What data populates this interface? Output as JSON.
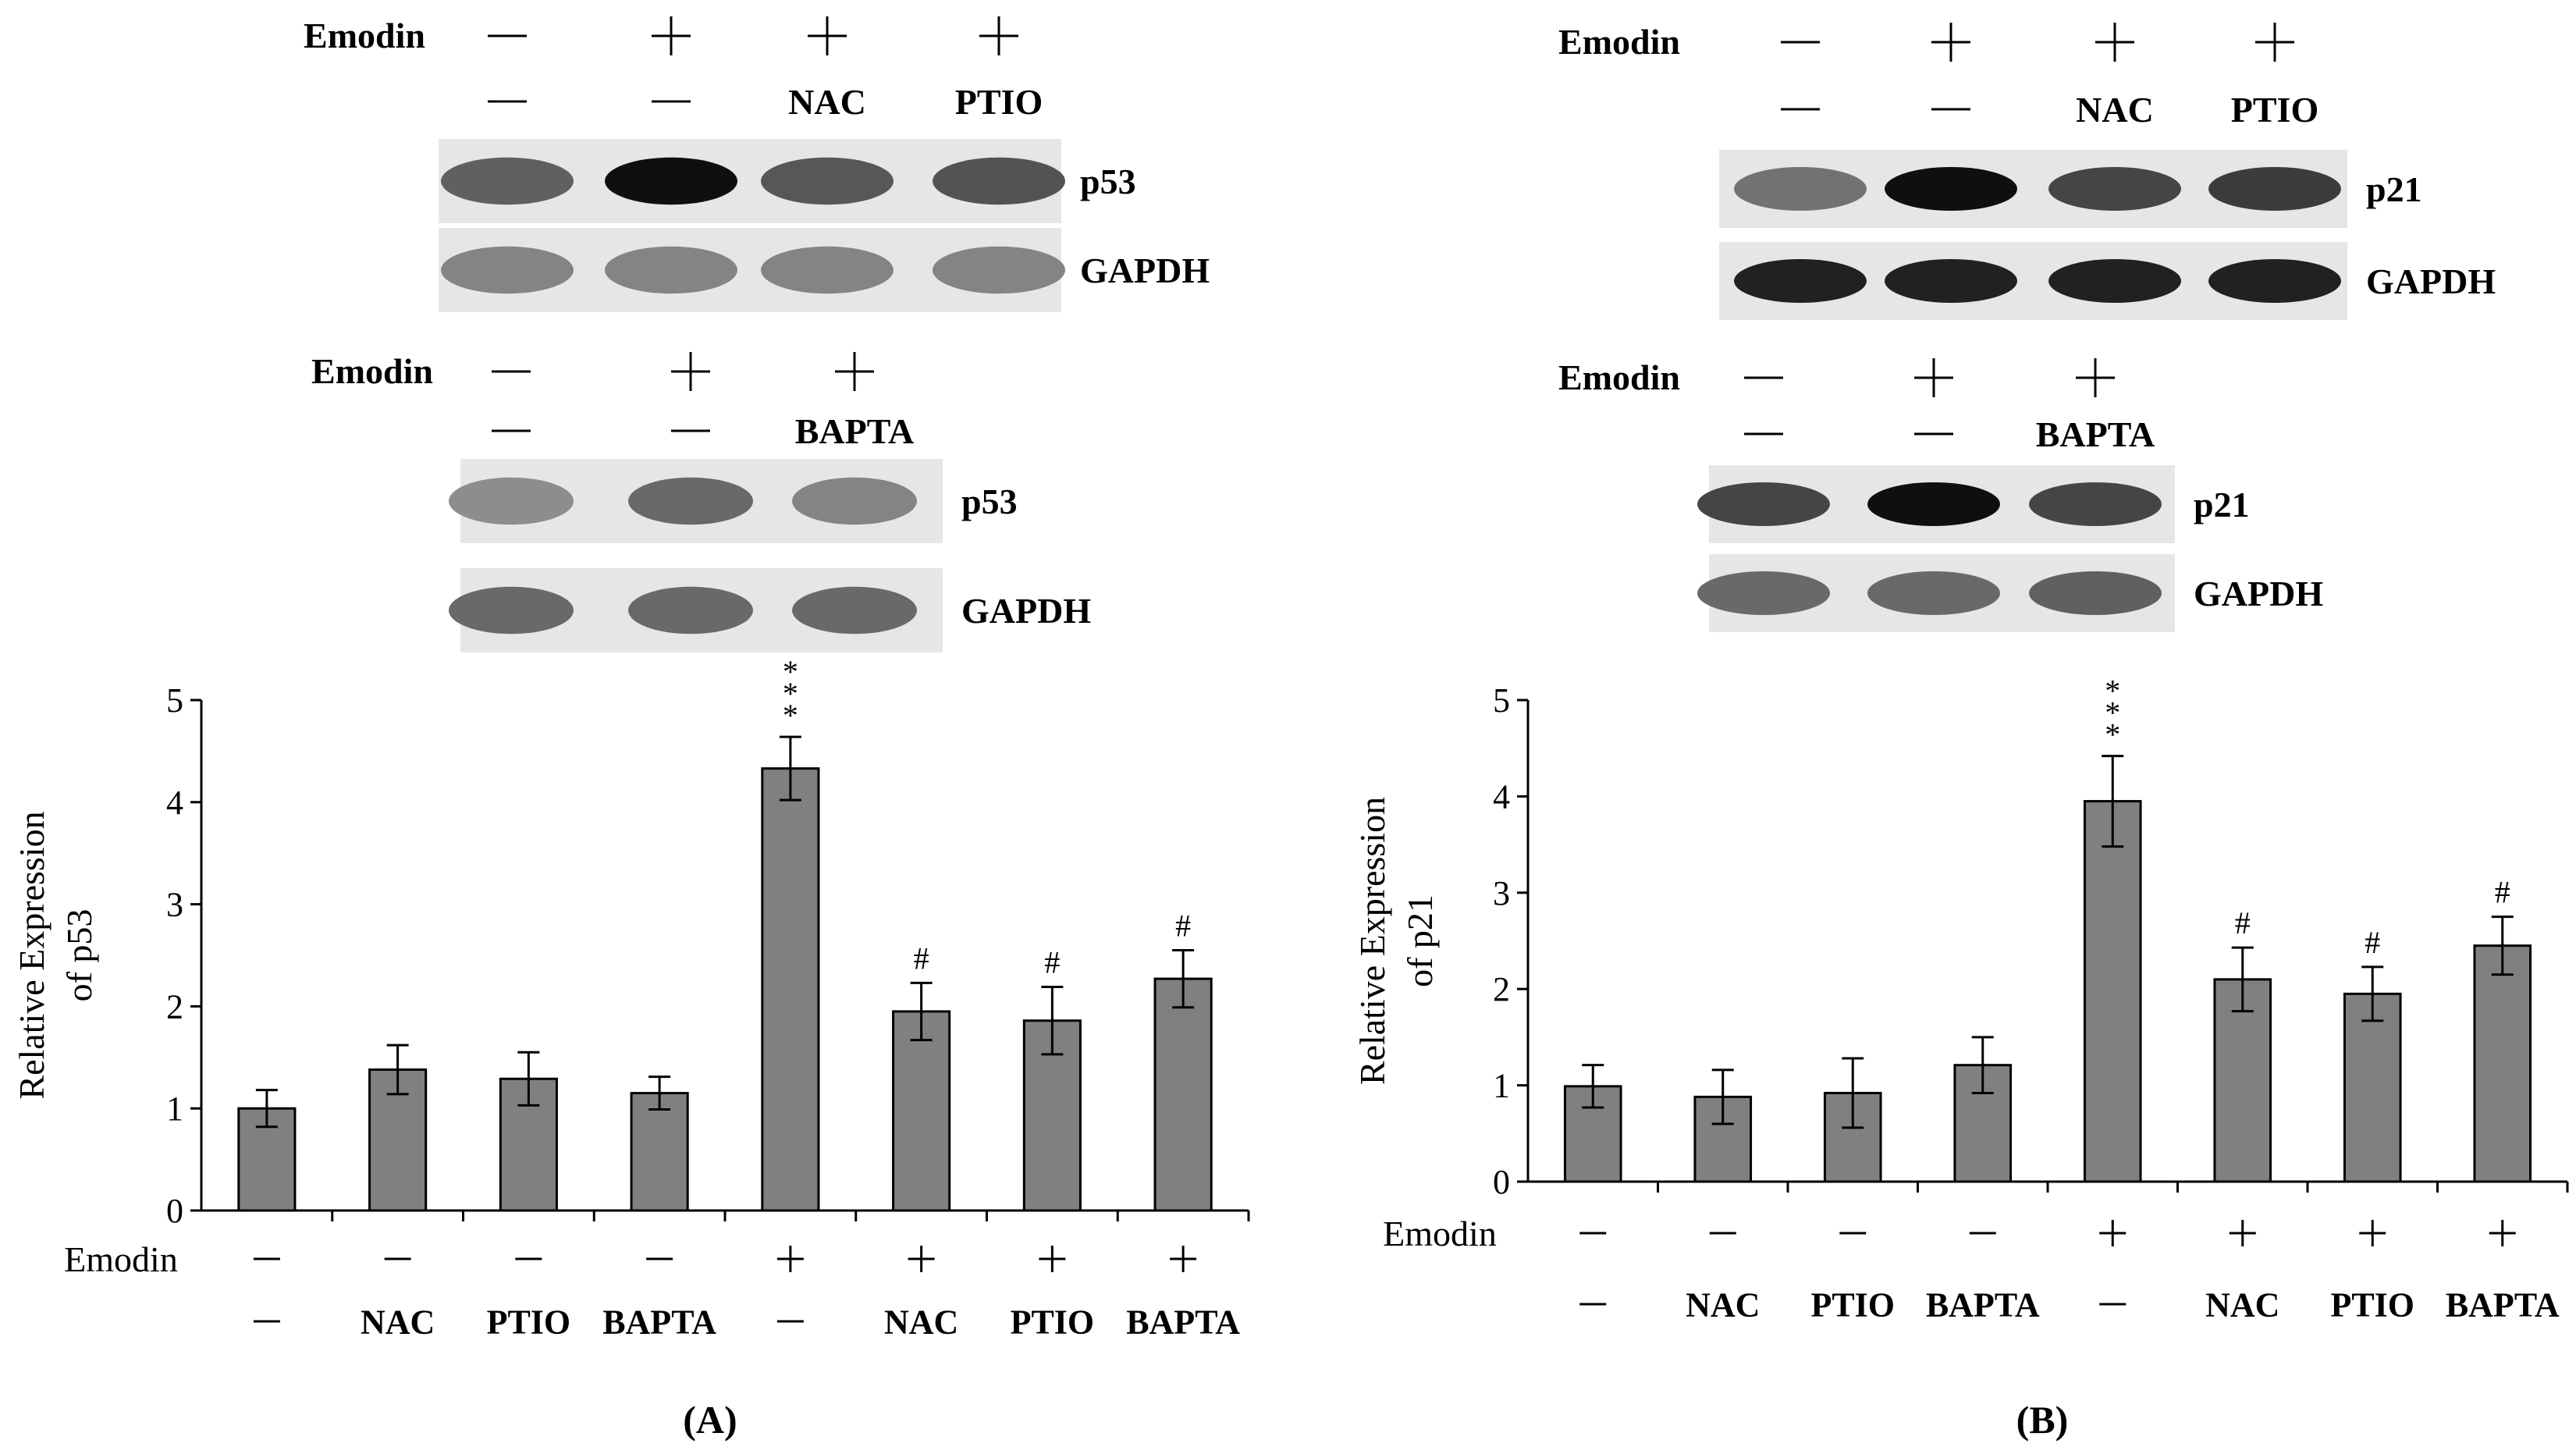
{
  "panel_a": {
    "label": "(A)",
    "blot_top": {
      "row_label": "Emodin",
      "emodin": [
        "—",
        "+",
        "+",
        "+"
      ],
      "treatment": [
        "—",
        "—",
        "NAC",
        "PTIO"
      ],
      "bands": [
        {
          "name": "p53",
          "intensity": [
            0.55,
            1.0,
            0.6,
            0.62
          ]
        },
        {
          "name": "GAPDH",
          "intensity": [
            0.35,
            0.35,
            0.35,
            0.35
          ]
        }
      ]
    },
    "blot_bottom": {
      "row_label": "Emodin",
      "emodin": [
        "—",
        "+",
        "+"
      ],
      "treatment": [
        "—",
        "—",
        "BAPTA"
      ],
      "bands": [
        {
          "name": "p53",
          "intensity": [
            0.3,
            0.5,
            0.35
          ]
        },
        {
          "name": "GAPDH",
          "intensity": [
            0.5,
            0.5,
            0.5
          ]
        }
      ]
    }
  },
  "panel_b": {
    "label": "(B)",
    "blot_top": {
      "row_label": "Emodin",
      "emodin": [
        "—",
        "+",
        "+",
        "+"
      ],
      "treatment": [
        "—",
        "—",
        "NAC",
        "PTIO"
      ],
      "bands": [
        {
          "name": "p21",
          "intensity": [
            0.45,
            1.0,
            0.7,
            0.75
          ]
        },
        {
          "name": "GAPDH",
          "intensity": [
            0.9,
            0.9,
            0.9,
            0.9
          ]
        }
      ]
    },
    "blot_bottom": {
      "row_label": "Emodin",
      "emodin": [
        "—",
        "+",
        "+"
      ],
      "treatment": [
        "—",
        "—",
        "BAPTA"
      ],
      "bands": [
        {
          "name": "p21",
          "intensity": [
            0.7,
            1.0,
            0.7
          ]
        },
        {
          "name": "GAPDH",
          "intensity": [
            0.5,
            0.5,
            0.55
          ]
        }
      ]
    }
  },
  "chart_data": [
    {
      "type": "bar",
      "panel": "(A)",
      "ylabel": [
        "Relative Expression",
        "of p53"
      ],
      "ylim": [
        0,
        5
      ],
      "yticks": [
        0,
        1,
        2,
        3,
        4,
        5
      ],
      "bar_color": "#808080",
      "row1_label": "Emodin",
      "emodin": [
        "—",
        "—",
        "—",
        "—",
        "+",
        "+",
        "+",
        "+"
      ],
      "categories": [
        "—",
        "NAC",
        "PTIO",
        "BAPTA",
        "—",
        "NAC",
        "PTIO",
        "BAPTA"
      ],
      "values": [
        1.0,
        1.38,
        1.29,
        1.15,
        4.33,
        1.95,
        1.86,
        2.27
      ],
      "errors": [
        0.18,
        0.24,
        0.26,
        0.16,
        0.31,
        0.28,
        0.33,
        0.28
      ],
      "annotations": [
        "",
        "",
        "",
        "",
        "***",
        "#",
        "#",
        "#"
      ]
    },
    {
      "type": "bar",
      "panel": "(B)",
      "ylabel": [
        "Relative Expression",
        "of p21"
      ],
      "ylim": [
        0,
        5
      ],
      "yticks": [
        0,
        1,
        2,
        3,
        4,
        5
      ],
      "bar_color": "#808080",
      "row1_label": "Emodin",
      "emodin": [
        "—",
        "—",
        "—",
        "—",
        "+",
        "+",
        "+",
        "+"
      ],
      "categories": [
        "—",
        "NAC",
        "PTIO",
        "BAPTA",
        "—",
        "NAC",
        "PTIO",
        "BAPTA"
      ],
      "values": [
        0.99,
        0.88,
        0.92,
        1.21,
        3.95,
        2.1,
        1.95,
        2.45
      ],
      "errors": [
        0.22,
        0.28,
        0.36,
        0.29,
        0.47,
        0.33,
        0.28,
        0.3
      ],
      "annotations": [
        "",
        "",
        "",
        "",
        "***",
        "#",
        "#",
        "#"
      ]
    }
  ]
}
